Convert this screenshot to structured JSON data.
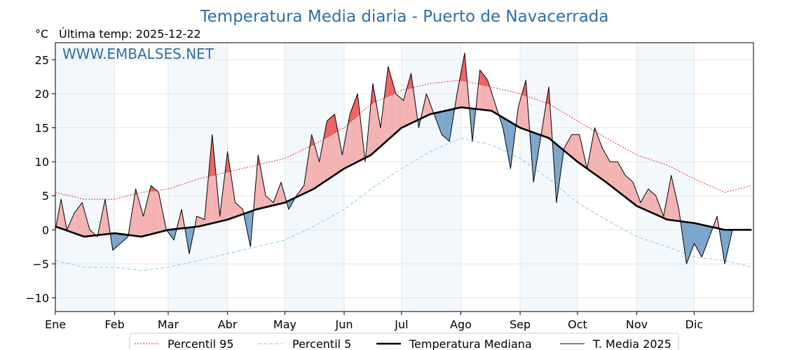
{
  "chart_data": {
    "type": "line",
    "title": "Temperatura Media diaria - Puerto de Navacerrada",
    "unit_label": "°C",
    "last_temp_label": "Última temp: 2025-12-22",
    "watermark": "WWW.EMBALSES.NET",
    "months": [
      "Ene",
      "Feb",
      "Mar",
      "Abr",
      "May",
      "Jun",
      "Jul",
      "Ago",
      "Sep",
      "Oct",
      "Nov",
      "Dic"
    ],
    "month_start_days": [
      0,
      31,
      59,
      90,
      120,
      151,
      181,
      212,
      243,
      273,
      304,
      334
    ],
    "xlim": [
      0,
      365
    ],
    "ylim": [
      -12,
      27.5
    ],
    "yticks": [
      25,
      20,
      15,
      10,
      5,
      0,
      -5,
      -10
    ],
    "grid": true,
    "legend_position": "bottom-center",
    "series": [
      {
        "name": "Percentil 95",
        "color": "#e41a1c",
        "style": "dotted",
        "x": [
          0,
          15,
          31,
          45,
          59,
          75,
          90,
          105,
          120,
          135,
          151,
          165,
          181,
          196,
          212,
          228,
          243,
          258,
          273,
          288,
          304,
          320,
          334,
          350,
          364
        ],
        "y": [
          5.5,
          4.5,
          4.5,
          5.5,
          6,
          7.5,
          8.5,
          9.5,
          10.5,
          12.5,
          15,
          18.5,
          20.5,
          21.5,
          22,
          21,
          20,
          18.5,
          16,
          13.5,
          11,
          9.5,
          7.5,
          5.5,
          6.5
        ]
      },
      {
        "name": "Percentil 5",
        "color": "#8ecae6",
        "style": "dashed",
        "x": [
          0,
          15,
          31,
          45,
          59,
          75,
          90,
          105,
          120,
          135,
          151,
          165,
          181,
          196,
          212,
          228,
          243,
          258,
          273,
          288,
          304,
          320,
          334,
          350,
          364
        ],
        "y": [
          -4.5,
          -5.5,
          -5.5,
          -6,
          -5.5,
          -4.5,
          -3.5,
          -2.5,
          -1.5,
          0.5,
          3,
          6,
          9,
          11.5,
          13.5,
          12.5,
          10.5,
          7.5,
          4,
          1.5,
          -1,
          -2.5,
          -4,
          -4.5,
          -5.5
        ]
      },
      {
        "name": "Temperatura Mediana",
        "color": "#000000",
        "style": "solid-thick",
        "x": [
          0,
          15,
          31,
          45,
          59,
          75,
          90,
          105,
          120,
          135,
          151,
          165,
          181,
          196,
          212,
          228,
          243,
          258,
          273,
          288,
          304,
          320,
          334,
          350,
          364
        ],
        "y": [
          0.5,
          -1,
          -0.5,
          -1,
          0,
          0.5,
          1.5,
          3,
          4,
          6,
          9,
          11,
          15,
          17,
          18,
          17.5,
          15,
          13.5,
          10,
          7,
          3.5,
          1.5,
          1,
          0,
          0
        ]
      },
      {
        "name": "T. Media 2025",
        "color": "#000000",
        "style": "solid-thin",
        "x": [
          0,
          3,
          6,
          10,
          14,
          18,
          22,
          26,
          30,
          34,
          38,
          42,
          46,
          50,
          54,
          58,
          62,
          66,
          70,
          74,
          78,
          82,
          86,
          90,
          94,
          98,
          102,
          106,
          110,
          114,
          118,
          122,
          126,
          130,
          134,
          138,
          142,
          146,
          150,
          154,
          158,
          162,
          166,
          170,
          174,
          178,
          182,
          186,
          190,
          194,
          198,
          202,
          206,
          210,
          214,
          218,
          222,
          226,
          230,
          234,
          238,
          242,
          246,
          250,
          254,
          258,
          262,
          266,
          270,
          274,
          278,
          282,
          286,
          290,
          294,
          298,
          302,
          306,
          310,
          314,
          318,
          322,
          326,
          330,
          334,
          338,
          342,
          346,
          350,
          354
        ],
        "y": [
          0,
          4.5,
          0,
          2.5,
          4,
          0,
          -1,
          4.5,
          -3,
          -2,
          -1,
          6,
          2,
          6.5,
          5.5,
          0,
          -1.5,
          3,
          -3.5,
          2,
          1.5,
          14,
          2,
          11.5,
          4,
          3,
          -2.5,
          11,
          5,
          4,
          7,
          3,
          5,
          6.5,
          14,
          10,
          16,
          17,
          11,
          17,
          20,
          10,
          21.5,
          15,
          24,
          20,
          19,
          23,
          15,
          20,
          17,
          14,
          13,
          20,
          26,
          13,
          23.5,
          22,
          18.5,
          15,
          9,
          18,
          22,
          7,
          14,
          21,
          4,
          12,
          14,
          14,
          9,
          15,
          12,
          10,
          10,
          8,
          7,
          4,
          6,
          5,
          2,
          8,
          3,
          -5,
          -2,
          -4,
          -1,
          2,
          -5,
          0
        ]
      }
    ]
  }
}
